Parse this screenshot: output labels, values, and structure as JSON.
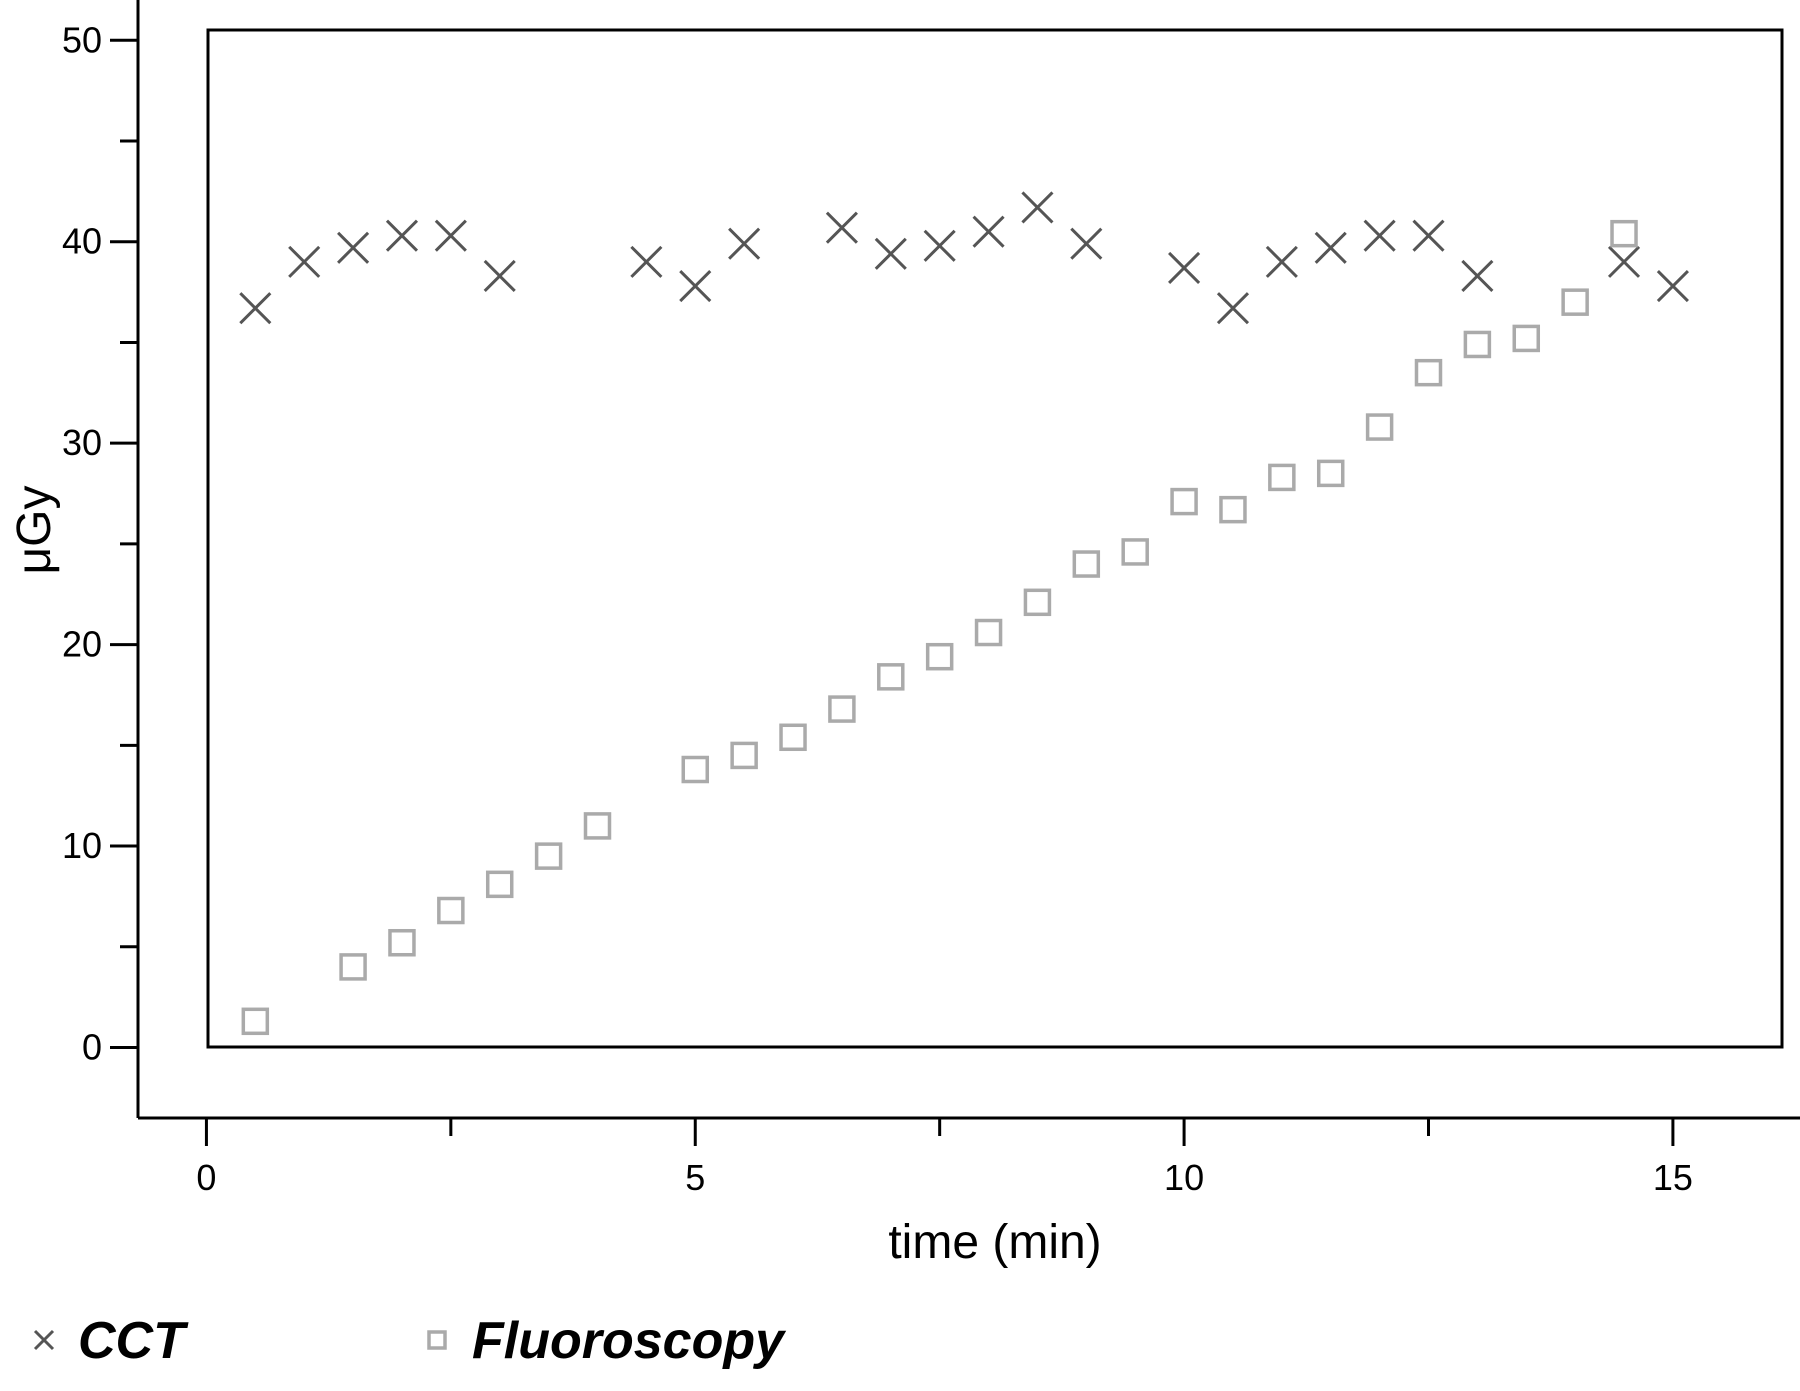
{
  "chart_data": {
    "type": "scatter",
    "xlabel": "time (min)",
    "ylabel": "μGy",
    "xlim": [
      -0.7,
      16.3
    ],
    "ylim": [
      -3.5,
      52
    ],
    "xticks": [
      0,
      5,
      10,
      15
    ],
    "yticks": [
      0,
      10,
      20,
      30,
      40,
      50
    ],
    "legend_position": "bottom-left",
    "grid": false,
    "series": [
      {
        "name": "CCT",
        "marker": "x",
        "color": "#555555",
        "points": [
          [
            0.5,
            36.7
          ],
          [
            1.0,
            39.0
          ],
          [
            1.5,
            39.7
          ],
          [
            2.0,
            40.3
          ],
          [
            2.5,
            40.3
          ],
          [
            3.0,
            38.3
          ],
          [
            4.5,
            39.0
          ],
          [
            5.0,
            37.8
          ],
          [
            5.5,
            39.9
          ],
          [
            6.5,
            40.7
          ],
          [
            7.0,
            39.4
          ],
          [
            7.5,
            39.8
          ],
          [
            8.0,
            40.5
          ],
          [
            8.5,
            41.7
          ],
          [
            9.0,
            39.9
          ],
          [
            10.0,
            38.7
          ],
          [
            10.5,
            36.7
          ],
          [
            11.0,
            39.0
          ],
          [
            11.5,
            39.7
          ],
          [
            12.0,
            40.3
          ],
          [
            12.5,
            40.3
          ],
          [
            13.0,
            38.3
          ],
          [
            14.5,
            39.0
          ],
          [
            15.0,
            37.8
          ]
        ]
      },
      {
        "name": "Fluoroscopy",
        "marker": "square",
        "color": "#aaaaaa",
        "points": [
          [
            0.5,
            1.3
          ],
          [
            1.5,
            4.0
          ],
          [
            2.0,
            5.2
          ],
          [
            2.5,
            6.8
          ],
          [
            3.0,
            8.1
          ],
          [
            3.5,
            9.5
          ],
          [
            4.0,
            11.0
          ],
          [
            5.0,
            13.8
          ],
          [
            5.5,
            14.5
          ],
          [
            6.0,
            15.4
          ],
          [
            6.5,
            16.8
          ],
          [
            7.0,
            18.4
          ],
          [
            7.5,
            19.4
          ],
          [
            8.0,
            20.6
          ],
          [
            8.5,
            22.1
          ],
          [
            9.0,
            24.0
          ],
          [
            9.5,
            24.6
          ],
          [
            10.0,
            27.1
          ],
          [
            10.5,
            26.7
          ],
          [
            11.0,
            28.3
          ],
          [
            11.5,
            28.5
          ],
          [
            12.0,
            30.8
          ],
          [
            12.5,
            33.5
          ],
          [
            13.0,
            34.9
          ],
          [
            13.5,
            35.2
          ],
          [
            14.0,
            37.0
          ],
          [
            14.5,
            40.4
          ]
        ]
      }
    ]
  }
}
